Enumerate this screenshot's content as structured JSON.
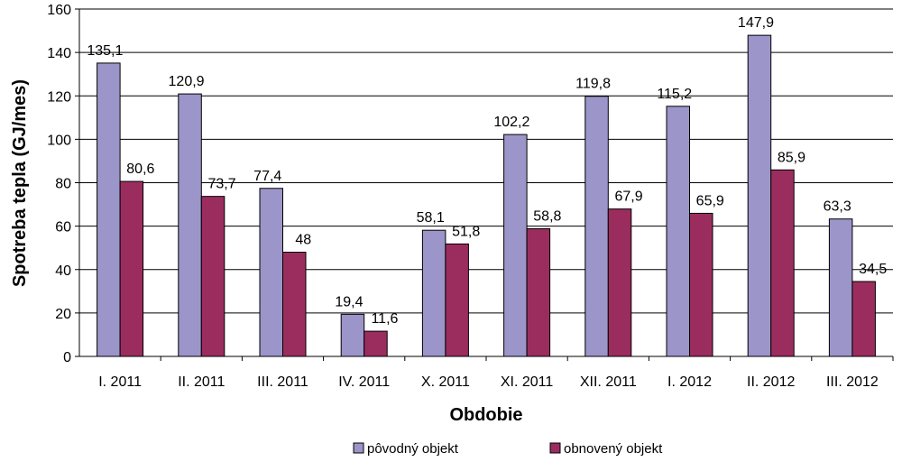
{
  "chart_data": {
    "type": "bar",
    "title": "",
    "xlabel": "Obdobie",
    "ylabel": "Spotreba tepla (GJ/mes)",
    "ylim": [
      0,
      160
    ],
    "yticks": [
      0,
      20,
      40,
      60,
      80,
      100,
      120,
      140,
      160
    ],
    "grid": true,
    "legend_position": "bottom",
    "categories": [
      "I. 2011",
      "II. 2011",
      "III. 2011",
      "IV. 2011",
      "X. 2011",
      "XI. 2011",
      "XII. 2011",
      "I. 2012",
      "II. 2012",
      "III. 2012"
    ],
    "series": [
      {
        "name": "pôvodný objekt",
        "color": "#9b95c9",
        "values": [
          135.1,
          120.9,
          77.4,
          19.4,
          58.1,
          102.2,
          119.8,
          115.2,
          147.9,
          63.3
        ],
        "labels": [
          "135,1",
          "120,9",
          "77,4",
          "19,4",
          "58,1",
          "102,2",
          "119,8",
          "115,2",
          "147,9",
          "63,3"
        ]
      },
      {
        "name": "obnovený objekt",
        "color": "#9b2d5e",
        "values": [
          80.6,
          73.7,
          48,
          11.6,
          51.8,
          58.8,
          67.9,
          65.9,
          85.9,
          34.5
        ],
        "labels": [
          "80,6",
          "73,7",
          "48",
          "11,6",
          "51,8",
          "58,8",
          "67,9",
          "65,9",
          "85,9",
          "34,5"
        ]
      }
    ]
  }
}
